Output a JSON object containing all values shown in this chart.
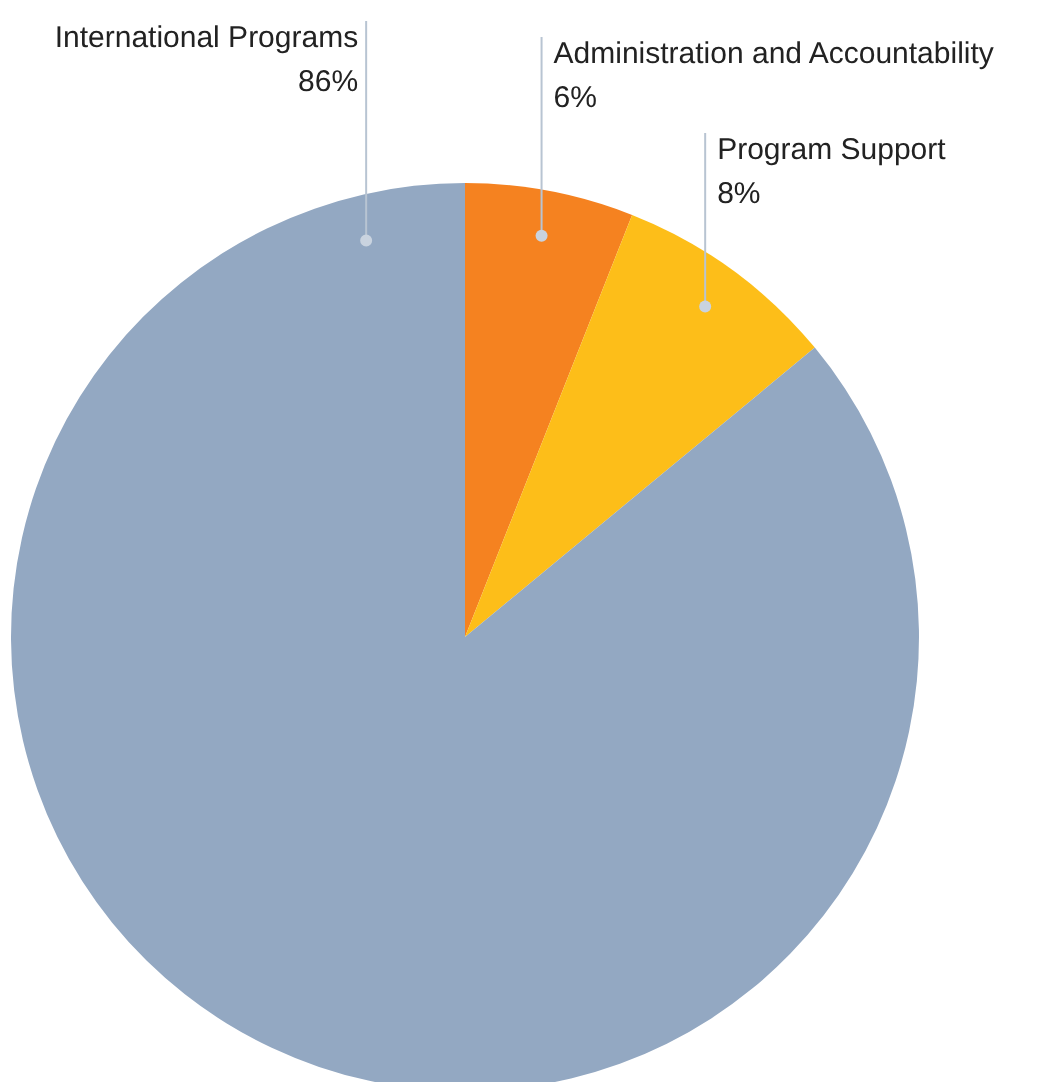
{
  "chart_data": {
    "type": "pie",
    "categories": [
      "Administration and Accountability",
      "Program Support",
      "International Programs"
    ],
    "values": [
      6,
      8,
      86
    ],
    "colors": [
      "#f58220",
      "#fdbe19",
      "#93a8c2"
    ],
    "value_labels": [
      "6%",
      "8%",
      "86%"
    ]
  }
}
